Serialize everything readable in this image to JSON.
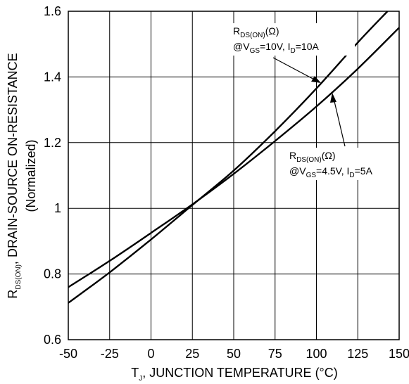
{
  "chart_data": {
    "type": "line",
    "x": {
      "label": {
        "main": "T",
        "sub": "J",
        "rest": ", JUNCTION TEMPERATURE (°C)"
      },
      "ticks": [
        "-50",
        "-25",
        "0",
        "25",
        "50",
        "75",
        "100",
        "125",
        "150"
      ],
      "range": [
        -50,
        150
      ]
    },
    "y": {
      "label": {
        "main": "R",
        "sub": "DS(ON)",
        "rest": ", DRAIN-SOURCE ON-RESISTANCE",
        "line2": "(Normalized)"
      },
      "ticks": [
        "0.6",
        "0.8",
        "1",
        "1.2",
        "1.4",
        "1.6"
      ],
      "range": [
        0.6,
        1.6
      ]
    },
    "grid": true,
    "series": [
      {
        "name_parts": {
          "r": "R",
          "r_sub": "DS(ON)",
          "r_rest": "(Ω)",
          "cond1": "@V",
          "cond1_sub": "GS",
          "cond1_rest": "=10V, I",
          "cond2_sub": "D",
          "cond2_rest": "=10A"
        },
        "x": [
          -50,
          -25,
          0,
          25,
          50,
          75,
          100,
          125,
          143
        ],
        "y": [
          0.712,
          0.805,
          0.905,
          1.01,
          1.115,
          1.235,
          1.365,
          1.505,
          1.6
        ]
      },
      {
        "name_parts": {
          "r": "R",
          "r_sub": "DS(ON)",
          "r_rest": "(Ω)",
          "cond1": "@V",
          "cond1_sub": "GS",
          "cond1_rest": "=4.5V, I",
          "cond2_sub": "D",
          "cond2_rest": "=5A"
        },
        "x": [
          -50,
          -25,
          0,
          25,
          50,
          75,
          100,
          125,
          150
        ],
        "y": [
          0.76,
          0.84,
          0.925,
          1.012,
          1.105,
          1.205,
          1.31,
          1.425,
          1.55
        ]
      }
    ]
  }
}
